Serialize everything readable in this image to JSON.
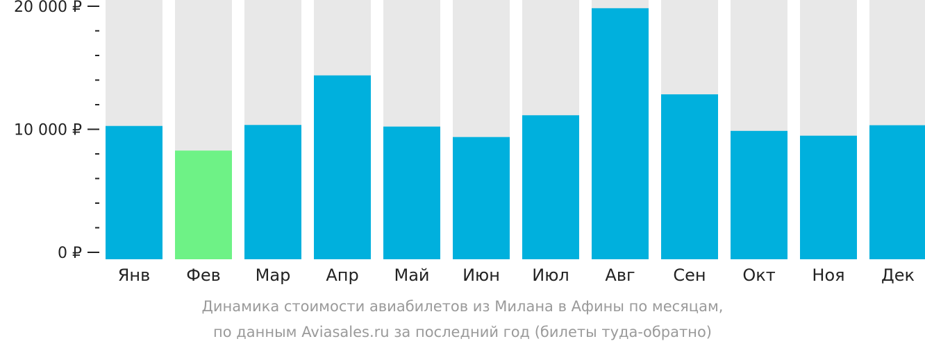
{
  "colors": {
    "bar": "#00b0dd",
    "bar_min": "#6ef286",
    "track": "#e8e8e8",
    "axis": "#222222"
  },
  "chart_data": {
    "type": "bar",
    "categories": [
      "Янв",
      "Фев",
      "Мар",
      "Апр",
      "Май",
      "Июн",
      "Июл",
      "Авг",
      "Сен",
      "Окт",
      "Ноя",
      "Дек"
    ],
    "values": [
      10270,
      8270,
      10350,
      14380,
      10220,
      9370,
      11140,
      19840,
      12840,
      9870,
      9480,
      10330
    ],
    "highlight_index": 1,
    "ylim": [
      0,
      20000
    ],
    "yticks": [
      {
        "value": 0,
        "label": "0 ₽"
      },
      {
        "value": 10000,
        "label": "10 000 ₽"
      },
      {
        "value": 20000,
        "label": "20 000 ₽"
      }
    ],
    "minor_step": 2000,
    "title": "",
    "xlabel": "",
    "ylabel": ""
  },
  "caption": {
    "line1": "Динамика стоимости авиабилетов из Милана в Афины по месяцам,",
    "line2": "по данным Aviasales.ru за последний год (билеты туда-обратно)"
  }
}
